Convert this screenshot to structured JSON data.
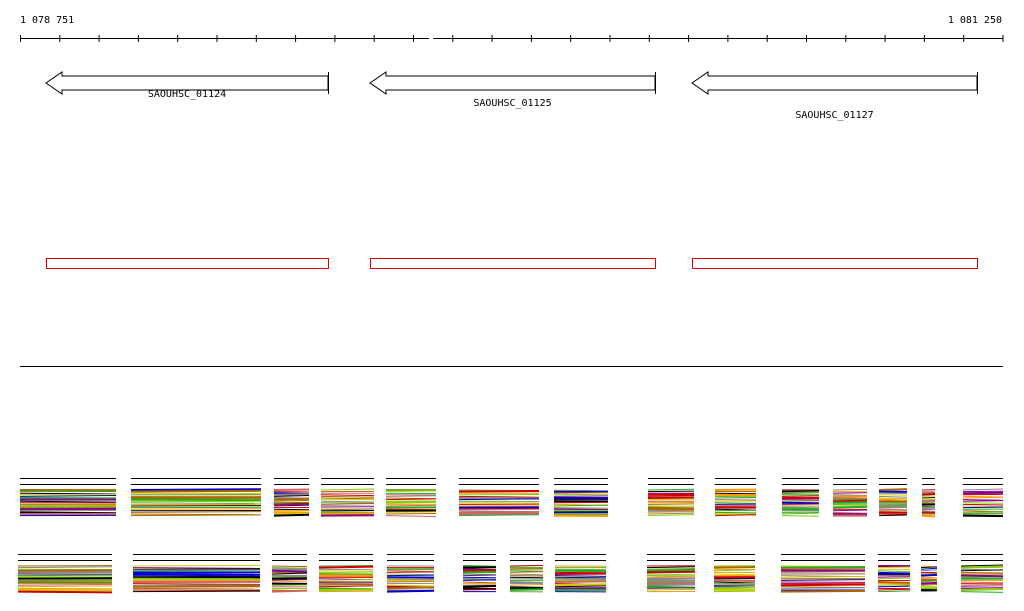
{
  "ruler": {
    "start_label": "1 078 751",
    "end_label": "1 081 250"
  },
  "genes": [
    {
      "label": "SAOUHSC_01124"
    },
    {
      "label": "SAOUHSC_01125"
    },
    {
      "label": "SAOUHSC_01127"
    }
  ]
}
